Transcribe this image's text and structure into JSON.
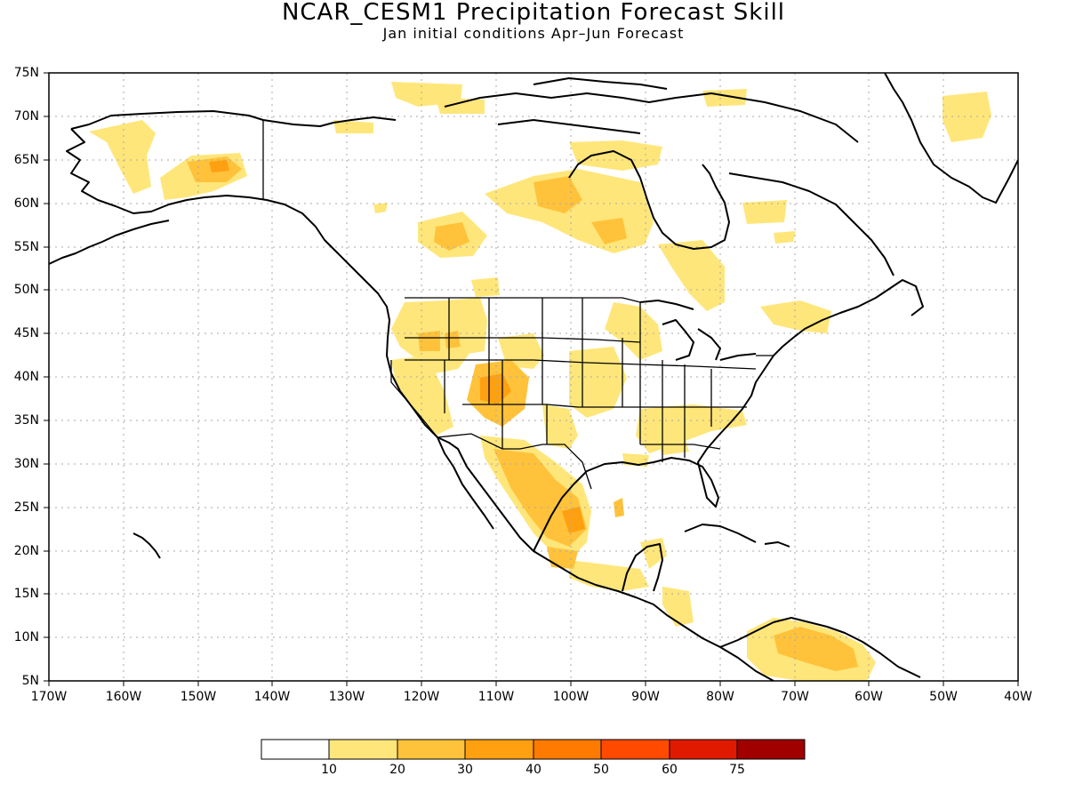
{
  "title": "NCAR_CESM1 Precipitation Forecast Skill",
  "subtitle": "Jan initial conditions  Apr–Jun Forecast",
  "map": {
    "lon_range": [
      -170,
      -40
    ],
    "lat_range": [
      5,
      75
    ],
    "lat_ticks": [
      "75N",
      "70N",
      "65N",
      "60N",
      "55N",
      "50N",
      "45N",
      "40N",
      "35N",
      "30N",
      "25N",
      "20N",
      "15N",
      "10N",
      "5N"
    ],
    "lon_ticks": [
      "170W",
      "160W",
      "150W",
      "140W",
      "130W",
      "120W",
      "110W",
      "100W",
      "90W",
      "80W",
      "70W",
      "60W",
      "50W",
      "40W"
    ],
    "gridlines": "dotted"
  },
  "colorbar": {
    "labels": [
      "10",
      "20",
      "30",
      "40",
      "50",
      "60",
      "75"
    ],
    "colors": [
      "#ffffff",
      "#ffe67a",
      "#ffc23a",
      "#ffa010",
      "#ff7a00",
      "#ff4a00",
      "#e01a00",
      "#a00000"
    ]
  }
}
